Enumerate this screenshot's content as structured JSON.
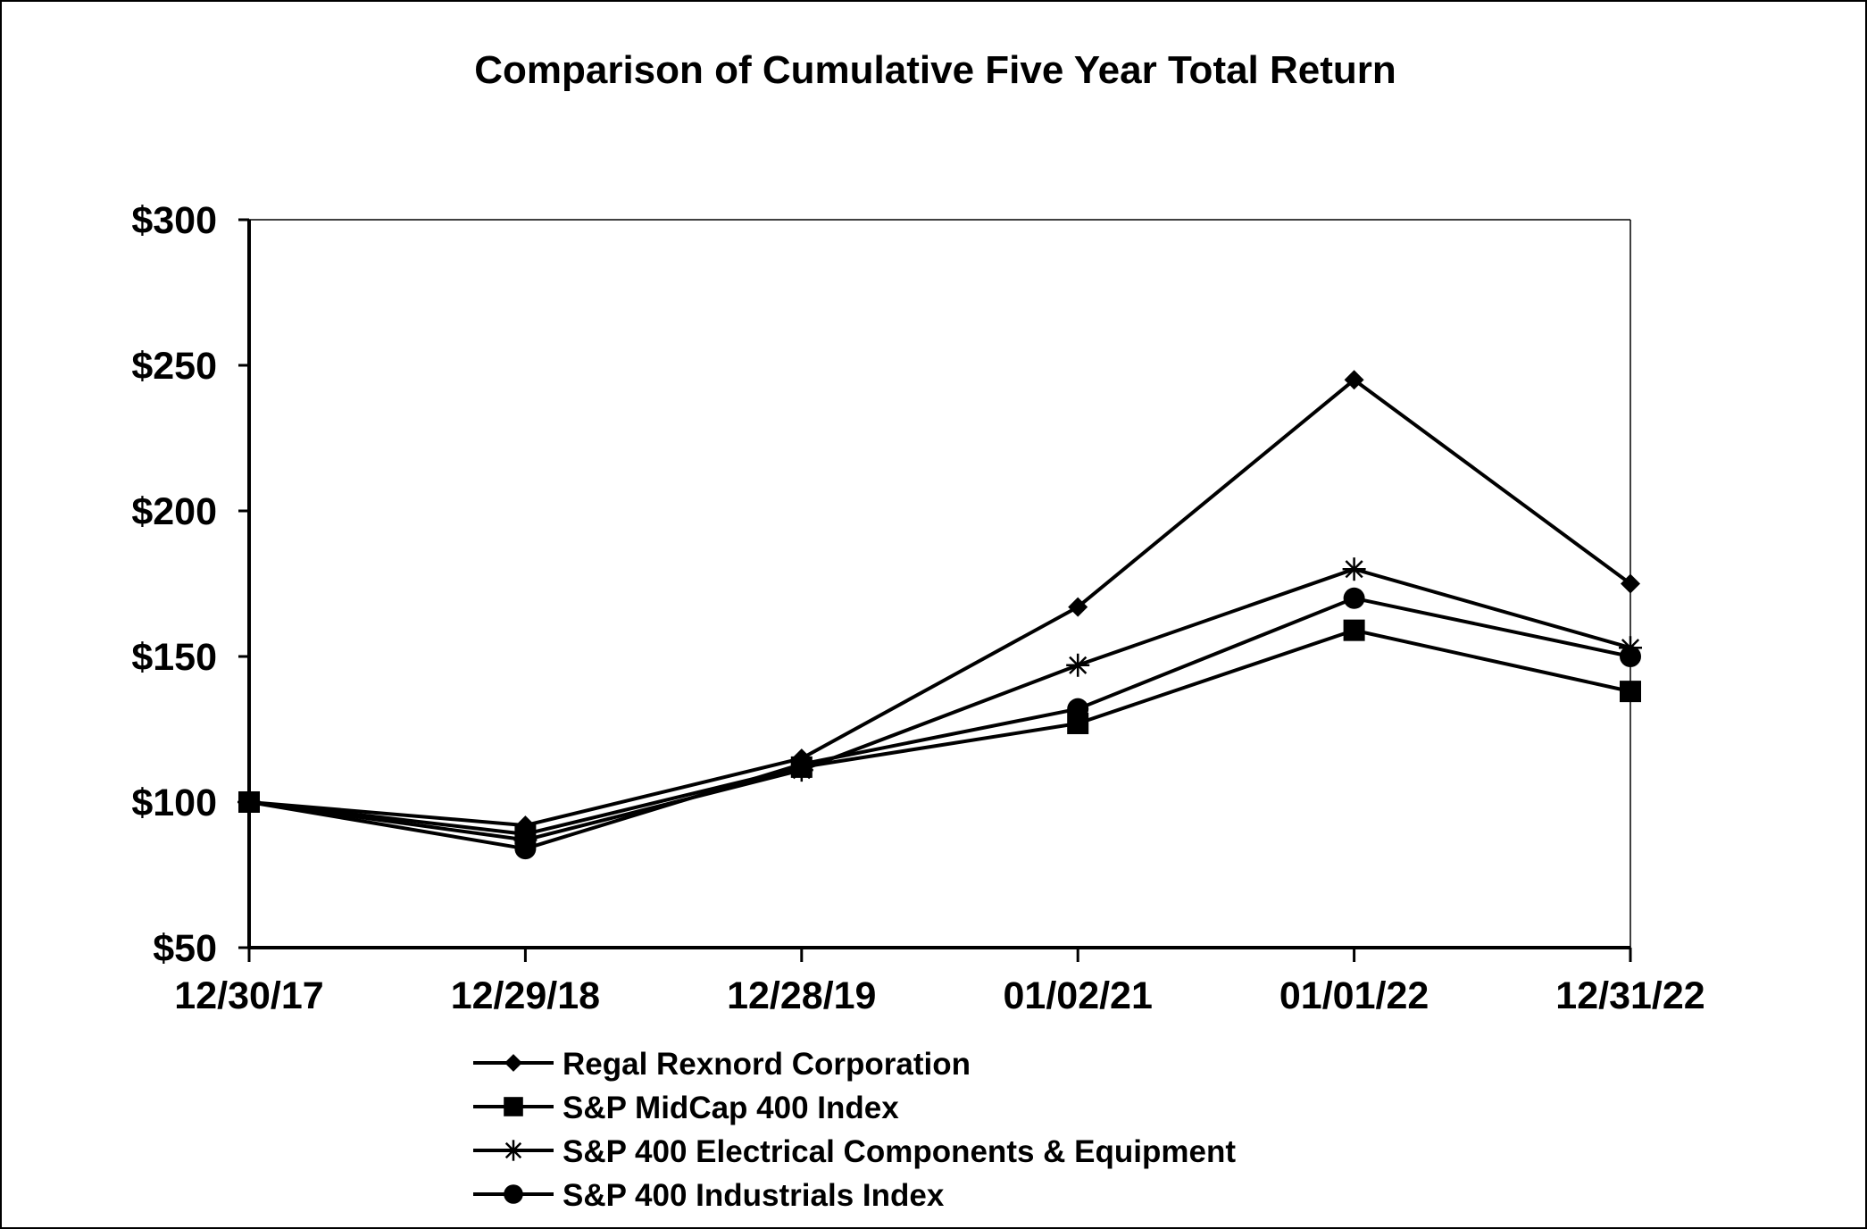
{
  "chart_data": {
    "type": "line",
    "title": "Comparison of Cumulative Five Year Total Return",
    "xlabel": "",
    "ylabel": "",
    "categories": [
      "12/30/17",
      "12/29/18",
      "12/28/19",
      "01/02/21",
      "01/01/22",
      "12/31/22"
    ],
    "ylim": [
      50,
      300
    ],
    "yticks": [
      50,
      100,
      150,
      200,
      250,
      300
    ],
    "ytick_labels": [
      "$50",
      "$100",
      "$150",
      "$200",
      "$250",
      "$300"
    ],
    "grid": false,
    "legend_position": "bottom",
    "series": [
      {
        "name": "Regal Rexnord Corporation",
        "marker": "diamond",
        "color": "#000000",
        "values": [
          100,
          92,
          115,
          167,
          245,
          175
        ]
      },
      {
        "name": "S&P MidCap 400 Index",
        "marker": "square",
        "color": "#000000",
        "values": [
          100,
          89,
          112,
          127,
          159,
          138
        ]
      },
      {
        "name": "S&P 400 Electrical Components & Equipment",
        "marker": "asterisk",
        "color": "#000000",
        "values": [
          100,
          87,
          111,
          147,
          180,
          153
        ]
      },
      {
        "name": "S&P 400 Industrials Index",
        "marker": "circle",
        "color": "#000000",
        "values": [
          100,
          84,
          113,
          132,
          170,
          150
        ]
      }
    ]
  }
}
